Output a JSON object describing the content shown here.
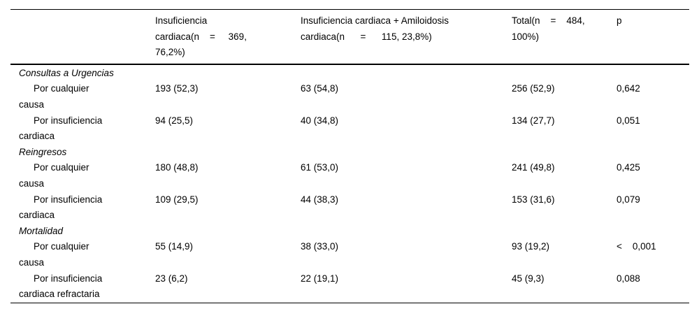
{
  "table": {
    "headers": {
      "row_label": "",
      "hf": "Insuficiencia\ncardiaca(n    =     369,\n76,2%)",
      "hf_am": "Insuficiencia cardiaca + Amiloidosis\ncardiaca(n      =      115, 23,8%)",
      "total": "Total(n    =    484,\n100%)",
      "p": "p"
    },
    "sections": [
      {
        "title": "Consultas a Urgencias",
        "rows": [
          {
            "label": "Por cualquier\ncausa",
            "hf": "193 (52,3)",
            "hf_am": "63 (54,8)",
            "total": "256 (52,9)",
            "p": "0,642"
          },
          {
            "label": "Por insuficiencia\ncardiaca",
            "hf": "94 (25,5)",
            "hf_am": "40 (34,8)",
            "total": "134 (27,7)",
            "p": "0,051"
          }
        ]
      },
      {
        "title": "Reingresos",
        "rows": [
          {
            "label": "Por cualquier\ncausa",
            "hf": "180 (48,8)",
            "hf_am": "61 (53,0)",
            "total": "241 (49,8)",
            "p": "0,425"
          },
          {
            "label": "Por insuficiencia\ncardiaca",
            "hf": "109 (29,5)",
            "hf_am": "44 (38,3)",
            "total": "153 (31,6)",
            "p": "0,079"
          }
        ]
      },
      {
        "title": "Mortalidad",
        "rows": [
          {
            "label": "Por cualquier\ncausa",
            "hf": "55 (14,9)",
            "hf_am": "38 (33,0)",
            "total": "93 (19,2)",
            "p": "<    0,001"
          },
          {
            "label": "Por insuficiencia\ncardiaca refractaria",
            "hf": "23 (6,2)",
            "hf_am": "22 (19,1)",
            "total": "45 (9,3)",
            "p": "0,088"
          }
        ]
      }
    ]
  }
}
